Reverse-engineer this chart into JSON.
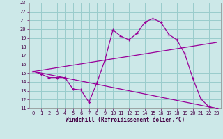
{
  "xlabel": "Windchill (Refroidissement éolien,°C)",
  "background_color": "#cce8e8",
  "grid_color": "#99cccc",
  "line_color": "#990099",
  "xlim": [
    -0.5,
    23.5
  ],
  "ylim": [
    11,
    23
  ],
  "xticks": [
    0,
    1,
    2,
    3,
    4,
    5,
    6,
    7,
    8,
    9,
    10,
    11,
    12,
    13,
    14,
    15,
    16,
    17,
    18,
    19,
    20,
    21,
    22,
    23
  ],
  "yticks": [
    11,
    12,
    13,
    14,
    15,
    16,
    17,
    18,
    19,
    20,
    21,
    22,
    23
  ],
  "line1_x": [
    0,
    1,
    2,
    3,
    4,
    5,
    6,
    7,
    8,
    9,
    10,
    11,
    12,
    13,
    14,
    15,
    16,
    17,
    18,
    19,
    20,
    21,
    22,
    23
  ],
  "line1_y": [
    15.2,
    14.9,
    14.5,
    14.5,
    14.5,
    13.2,
    13.1,
    11.7,
    13.9,
    16.5,
    19.9,
    19.2,
    18.8,
    19.5,
    20.8,
    21.2,
    20.8,
    19.4,
    18.8,
    17.2,
    14.4,
    12.1,
    11.2,
    11.0
  ],
  "line2_x": [
    0,
    23
  ],
  "line2_y": [
    15.2,
    18.5
  ],
  "line3_x": [
    0,
    23
  ],
  "line3_y": [
    15.2,
    11.0
  ],
  "xlabel_fontsize": 5.5,
  "tick_fontsize": 5.0
}
